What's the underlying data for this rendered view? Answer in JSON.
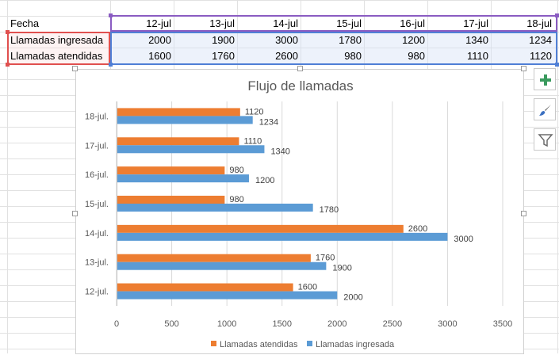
{
  "sheet": {
    "header_row": {
      "label": "Fecha",
      "dates": [
        "12-jul",
        "13-jul",
        "14-jul",
        "15-jul",
        "16-jul",
        "17-jul",
        "18-jul"
      ]
    },
    "rows": [
      {
        "label": "Llamadas ingresada",
        "values": [
          2000,
          1900,
          3000,
          1780,
          1200,
          1340,
          1234
        ]
      },
      {
        "label": "Llamadas atendidas",
        "values": [
          1600,
          1760,
          2600,
          980,
          980,
          1110,
          1120
        ]
      }
    ]
  },
  "chart_data": {
    "type": "bar",
    "orientation": "horizontal",
    "title": "Flujo de llamadas",
    "categories": [
      "12-jul.",
      "13-jul.",
      "14-jul.",
      "15-jul.",
      "16-jul.",
      "17-jul.",
      "18-jul."
    ],
    "series": [
      {
        "name": "Llamadas ingresada",
        "values": [
          2000,
          1900,
          3000,
          1780,
          1200,
          1340,
          1234
        ],
        "color": "#5b9bd5"
      },
      {
        "name": "Llamadas atendidas",
        "values": [
          1600,
          1760,
          2600,
          980,
          980,
          1110,
          1120
        ],
        "color": "#ed7d31"
      }
    ],
    "xlim": [
      0,
      3500
    ],
    "xticks": [
      0,
      500,
      1000,
      1500,
      2000,
      2500,
      3000,
      3500
    ],
    "legend_order": [
      "Llamadas atendidas",
      "Llamadas ingresada"
    ],
    "legend_position": "bottom",
    "grid": "vertical",
    "data_labels": true
  },
  "side_buttons": [
    {
      "name": "chart-elements-button",
      "icon": "plus-icon"
    },
    {
      "name": "chart-styles-button",
      "icon": "brush-icon"
    },
    {
      "name": "chart-filters-button",
      "icon": "filter-icon"
    }
  ],
  "colors": {
    "accent_purple": "#8a5cc2",
    "accent_blue": "#4f7fd6",
    "accent_red": "#e0504f",
    "gridline": "#d9d9d9"
  }
}
